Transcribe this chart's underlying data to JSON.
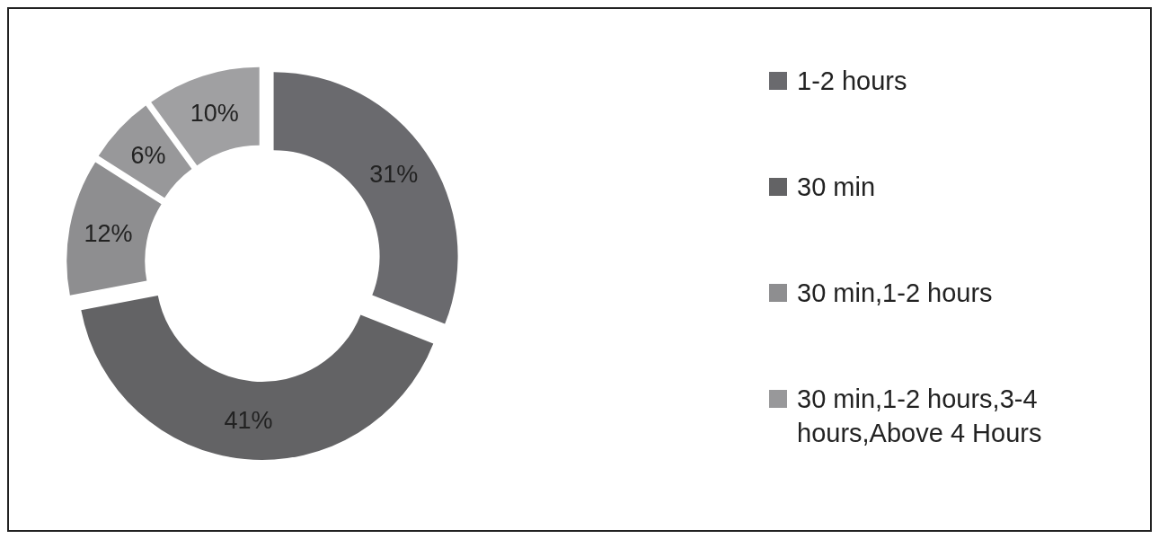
{
  "chart_data": {
    "type": "donut",
    "categories": [
      "1-2 hours",
      "30 min",
      "30 min,1-2 hours",
      "30 min,1-2 hours,3-4 hours,Above 4 Hours",
      null
    ],
    "values": [
      31,
      41,
      12,
      6,
      10
    ],
    "colors": [
      "#6a6a6e",
      "#636365",
      "#8e8e90",
      "#98989a",
      "#a0a0a2"
    ],
    "value_labels": [
      "31%",
      "41%",
      "12%",
      "6%",
      "10%"
    ],
    "legend": "right"
  }
}
